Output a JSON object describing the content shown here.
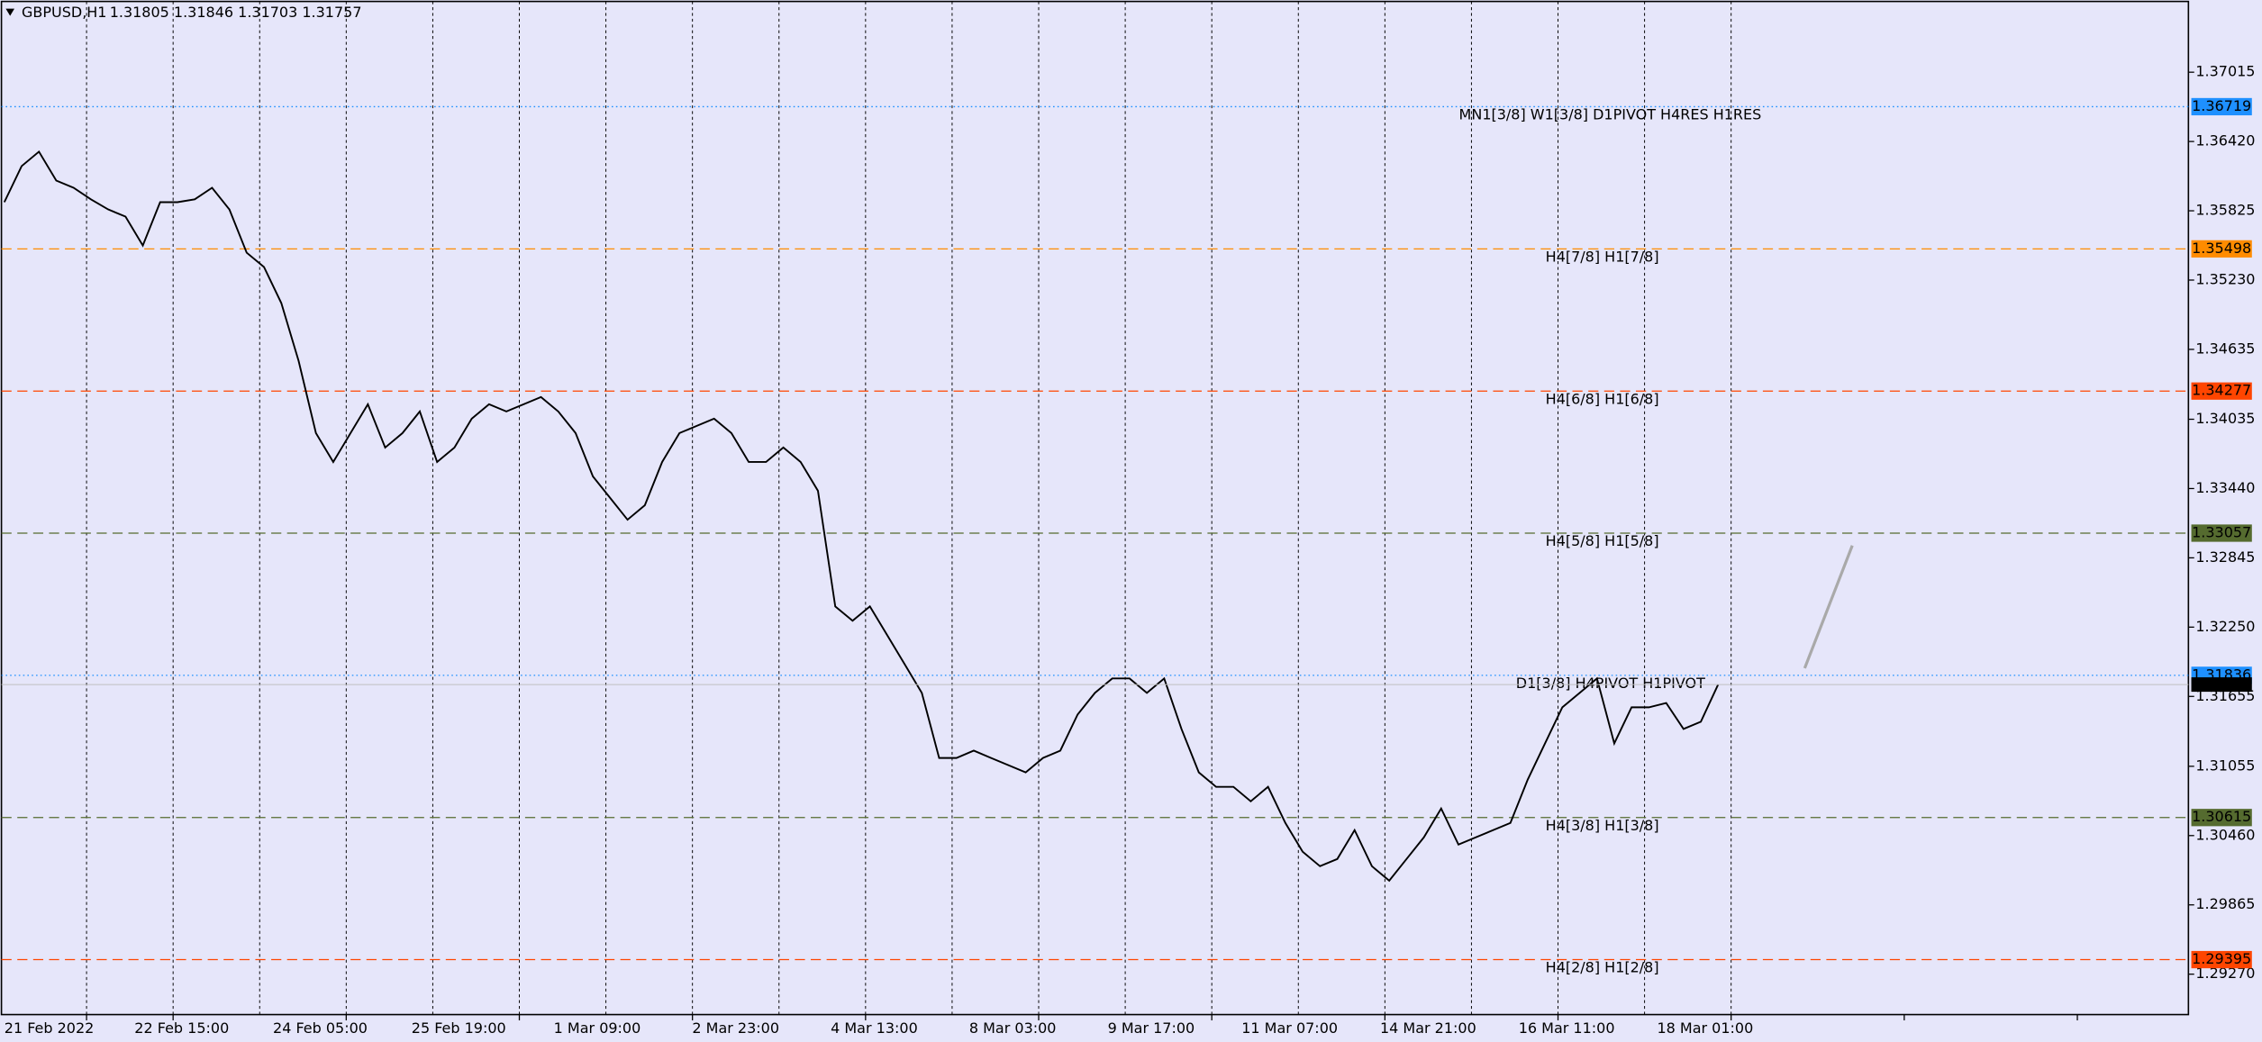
{
  "header": {
    "symbol": "GBPUSD,H1",
    "ohlc": "1.31805 1.31846 1.31703 1.31757"
  },
  "chart_data": {
    "type": "line",
    "x_labels": [
      "21 Feb 2022",
      "22 Feb 15:00",
      "24 Feb 05:00",
      "25 Feb 19:00",
      "1 Mar 09:00",
      "2 Mar 23:00",
      "4 Mar 13:00",
      "8 Mar 03:00",
      "9 Mar 17:00",
      "11 Mar 07:00",
      "14 Mar 21:00",
      "16 Mar 11:00",
      "18 Mar 01:00"
    ],
    "series": [
      {
        "color": "#000000",
        "values": [
          1.35899,
          1.36209,
          1.36333,
          1.36085,
          1.36023,
          1.35924,
          1.35837,
          1.35775,
          1.35527,
          1.35899,
          1.35899,
          1.35924,
          1.36023,
          1.35837,
          1.35465,
          1.35342,
          1.35032,
          1.34536,
          1.33916,
          1.33668,
          1.33916,
          1.34164,
          1.33792,
          1.33916,
          1.34102,
          1.33668,
          1.33792,
          1.3404,
          1.34164,
          1.34102,
          1.34164,
          1.34226,
          1.34102,
          1.33916,
          1.33544,
          1.33358,
          1.33172,
          1.33296,
          1.33668,
          1.33916,
          1.33978,
          1.3404,
          1.33916,
          1.33668,
          1.33668,
          1.33792,
          1.33668,
          1.3342,
          1.32428,
          1.32305,
          1.32428,
          1.32181,
          1.31933,
          1.31685,
          1.31127,
          1.31127,
          1.31189,
          1.31127,
          1.31065,
          1.31003,
          1.31127,
          1.31189,
          1.31499,
          1.31685,
          1.31809,
          1.31809,
          1.31685,
          1.31809,
          1.31375,
          1.31003,
          1.30879,
          1.30879,
          1.30755,
          1.30879,
          1.30569,
          1.30321,
          1.30197,
          1.30259,
          1.30507,
          1.30197,
          1.30073,
          1.30259,
          1.30445,
          1.30693,
          1.30383,
          1.30445,
          1.30507,
          1.30569,
          1.30941,
          1.31251,
          1.31561,
          1.31685,
          1.31809,
          1.31251,
          1.31561,
          1.31561,
          1.31598,
          1.31375,
          1.31437,
          1.31757
        ]
      }
    ],
    "ylim": [
      1.28923,
      1.37635
    ],
    "yticks": [
      1.37015,
      {
        "value": 1.3642,
        "label": "1.36420"
      },
      1.35825,
      {
        "value": 1.3523,
        "label": "1.35230"
      },
      1.34635,
      1.34035,
      {
        "value": 1.3344,
        "label": "1.33440"
      },
      1.32845,
      {
        "value": 1.3225,
        "label": "1.32250"
      },
      1.31655,
      1.31055,
      {
        "value": 1.3046,
        "label": "1.30460"
      },
      1.29865,
      {
        "value": 1.2927,
        "label": "1.29270"
      }
    ],
    "grid": true,
    "levels": [
      {
        "value": 1.36719,
        "label": "MN1[3/8] W1[3/8] D1PIVOT H4RES H1RES",
        "color": "#1e90ff",
        "style": "dotted"
      },
      {
        "value": 1.35498,
        "label": "H4[7/8] H1[7/8]",
        "color": "#ff8c00",
        "style": "dashed"
      },
      {
        "value": 1.34277,
        "label": "H4[6/8] H1[6/8]",
        "color": "#ff4500",
        "style": "dashed"
      },
      {
        "value": 1.33057,
        "label": "H4[5/8] H1[5/8]",
        "color": "#556b2f",
        "style": "dashed"
      },
      {
        "value": 1.31836,
        "label": "D1[3/8] H4PIVOT H1PIVOT",
        "color": "#1e90ff",
        "style": "dotted"
      },
      {
        "value": 1.30615,
        "label": "H4[3/8] H1[3/8]",
        "color": "#556b2f",
        "style": "dashed"
      },
      {
        "value": 1.29395,
        "label": "H4[2/8] H1[2/8]",
        "color": "#ff4500",
        "style": "dashed"
      }
    ],
    "last_price": 1.31757
  }
}
